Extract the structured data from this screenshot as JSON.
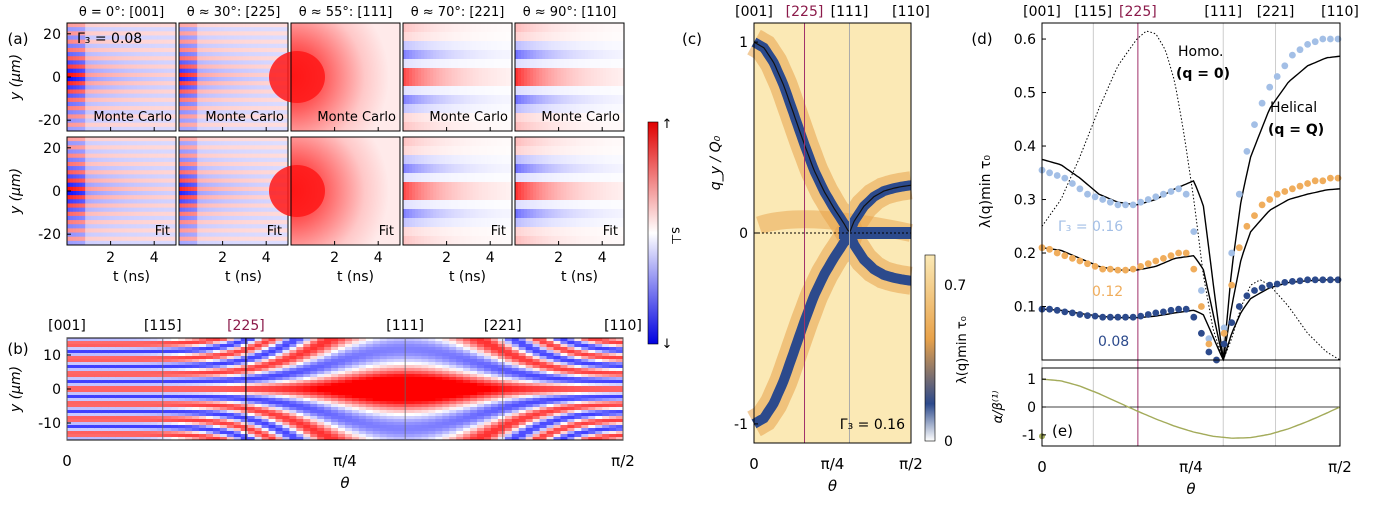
{
  "chart_data": [
    {
      "panel": "(a)",
      "type": "heatmap",
      "gamma_label": "Γ₃ = 0.08",
      "ylabel": "y (μm)",
      "xlabel": "t (ns)",
      "xticks": [
        2,
        4
      ],
      "yticks": [
        20,
        0,
        -20
      ],
      "ylim": [
        -25,
        25
      ],
      "row_labels": [
        "Monte Carlo",
        "Fit"
      ],
      "columns": [
        {
          "title": "θ = 0°: [001]",
          "mode": "stripe",
          "strength": 1.0
        },
        {
          "title": "θ ≈ 30°: [225]",
          "mode": "stripe",
          "strength": 0.9
        },
        {
          "title": "θ ≈ 55°: [111]",
          "mode": "homo",
          "strength": 1.0
        },
        {
          "title": "θ ≈ 70°: [221]",
          "mode": "wide",
          "strength": 0.8
        },
        {
          "title": "θ ≈ 90°: [110]",
          "mode": "wide",
          "strength": 0.9
        }
      ]
    },
    {
      "panel": "(b)",
      "type": "heatmap",
      "ylabel": "y (μm)",
      "xlabel": "θ",
      "xticks": [
        "0",
        "π/4",
        "π/2"
      ],
      "yticks": [
        10,
        0,
        -10
      ],
      "ylim": [
        -15,
        15
      ],
      "top_labels": [
        {
          "text": "[001]",
          "theta": 0.0
        },
        {
          "text": "[115]",
          "theta": 0.2706
        },
        {
          "text": "[225]",
          "theta": 0.5054,
          "highlight": true
        },
        {
          "text": "[111]",
          "theta": 0.9553
        },
        {
          "text": "[221]",
          "theta": 1.231
        },
        {
          "text": "[110]",
          "theta": 1.5708
        }
      ]
    },
    {
      "panel": "(c)",
      "type": "heatmap",
      "xlabel": "θ",
      "ylabel": "q_y / Q₀",
      "xticks": [
        "0",
        "π/4",
        "π/2"
      ],
      "yticks": [
        1,
        0,
        -1
      ],
      "ylim": [
        -1.1,
        1.1
      ],
      "gamma_label": "Γ₃ = 0.16",
      "top_labels": [
        {
          "text": "[001]",
          "theta": 0.0
        },
        {
          "text": "[225]",
          "theta": 0.5054,
          "highlight": true
        },
        {
          "text": "[111]",
          "theta": 0.9553
        },
        {
          "text": "[110]",
          "theta": 1.5708
        }
      ],
      "colorbar": {
        "label": "λ(q)min τ₀",
        "ticks": [
          0.7,
          0
        ]
      },
      "helical_curve": {
        "theta": [
          0,
          0.1,
          0.2,
          0.3,
          0.4,
          0.5,
          0.6,
          0.7,
          0.8,
          0.9,
          0.955,
          1.0,
          1.1,
          1.2,
          1.3,
          1.4,
          1.5,
          1.5708
        ],
        "qy": [
          1.0,
          0.97,
          0.89,
          0.77,
          0.62,
          0.47,
          0.33,
          0.22,
          0.13,
          0.05,
          0.0,
          0.06,
          0.14,
          0.19,
          0.22,
          0.235,
          0.245,
          0.25
        ]
      }
    },
    {
      "panel": "(d)",
      "type": "scatter",
      "xlabel": "θ",
      "ylabel": "λ(q)min τ₀",
      "xticks": [
        "0",
        "π/4",
        "π/2"
      ],
      "yticks": [
        0.1,
        0.2,
        0.3,
        0.4,
        0.5,
        0.6
      ],
      "ylim": [
        0,
        0.63
      ],
      "top_labels": [
        {
          "text": "[001]",
          "theta": 0.0
        },
        {
          "text": "[115]",
          "theta": 0.2706
        },
        {
          "text": "[225]",
          "theta": 0.5054,
          "highlight": true
        },
        {
          "text": "[111]",
          "theta": 0.9553
        },
        {
          "text": "[221]",
          "theta": 1.231
        },
        {
          "text": "[110]",
          "theta": 1.5708
        }
      ],
      "annotations": {
        "homo_line1": "Homo.",
        "homo_line2": "(q = 0)",
        "hel_line1": "Helical",
        "hel_line2": "(q = Q)"
      },
      "series": [
        {
          "name": "Γ₃ = 0.16",
          "color": "#a3bfe6",
          "theta": [
            0,
            0.04,
            0.08,
            0.12,
            0.16,
            0.2,
            0.24,
            0.28,
            0.32,
            0.36,
            0.4,
            0.44,
            0.48,
            0.52,
            0.56,
            0.6,
            0.64,
            0.68,
            0.72,
            0.76,
            0.8,
            0.84,
            0.88,
            0.92,
            0.96,
            1.0,
            1.04,
            1.08,
            1.12,
            1.16,
            1.2,
            1.24,
            1.28,
            1.32,
            1.36,
            1.4,
            1.44,
            1.48,
            1.52,
            1.56
          ],
          "values": [
            0.355,
            0.35,
            0.345,
            0.34,
            0.33,
            0.32,
            0.31,
            0.305,
            0.3,
            0.295,
            0.29,
            0.29,
            0.29,
            0.295,
            0.3,
            0.305,
            0.31,
            0.315,
            0.32,
            0.31,
            0.24,
            0.13,
            0.04,
            0.0,
            0.06,
            0.2,
            0.31,
            0.39,
            0.44,
            0.48,
            0.51,
            0.53,
            0.55,
            0.57,
            0.58,
            0.59,
            0.595,
            0.6,
            0.6,
            0.6
          ]
        },
        {
          "name": "0.12",
          "color": "#f0ad5c",
          "theta": [
            0,
            0.04,
            0.08,
            0.12,
            0.16,
            0.2,
            0.24,
            0.28,
            0.32,
            0.36,
            0.4,
            0.44,
            0.48,
            0.52,
            0.56,
            0.6,
            0.64,
            0.68,
            0.72,
            0.76,
            0.8,
            0.84,
            0.88,
            0.92,
            0.96,
            1.0,
            1.04,
            1.08,
            1.12,
            1.16,
            1.2,
            1.24,
            1.28,
            1.32,
            1.36,
            1.4,
            1.44,
            1.48,
            1.52,
            1.56
          ],
          "values": [
            0.21,
            0.207,
            0.2,
            0.195,
            0.19,
            0.185,
            0.18,
            0.175,
            0.17,
            0.17,
            0.168,
            0.168,
            0.17,
            0.175,
            0.18,
            0.185,
            0.19,
            0.195,
            0.2,
            0.2,
            0.17,
            0.1,
            0.03,
            0.0,
            0.05,
            0.14,
            0.21,
            0.25,
            0.27,
            0.29,
            0.3,
            0.31,
            0.315,
            0.32,
            0.325,
            0.33,
            0.335,
            0.335,
            0.34,
            0.34
          ]
        },
        {
          "name": "0.08",
          "color": "#2c4a8c",
          "theta": [
            0,
            0.04,
            0.08,
            0.12,
            0.16,
            0.2,
            0.24,
            0.28,
            0.32,
            0.36,
            0.4,
            0.44,
            0.48,
            0.52,
            0.56,
            0.6,
            0.64,
            0.68,
            0.72,
            0.76,
            0.8,
            0.84,
            0.88,
            0.92,
            0.96,
            1.0,
            1.04,
            1.08,
            1.12,
            1.16,
            1.2,
            1.24,
            1.28,
            1.32,
            1.36,
            1.4,
            1.44,
            1.48,
            1.52,
            1.56
          ],
          "values": [
            0.095,
            0.095,
            0.093,
            0.09,
            0.088,
            0.085,
            0.083,
            0.082,
            0.08,
            0.08,
            0.08,
            0.08,
            0.08,
            0.082,
            0.085,
            0.088,
            0.09,
            0.093,
            0.095,
            0.095,
            0.08,
            0.05,
            0.015,
            0.0,
            0.03,
            0.07,
            0.1,
            0.12,
            0.13,
            0.135,
            0.14,
            0.142,
            0.145,
            0.147,
            0.148,
            0.15,
            0.15,
            0.15,
            0.15,
            0.15
          ]
        }
      ],
      "fit_curves": [
        {
          "theta": [
            0,
            0.1,
            0.2,
            0.3,
            0.4,
            0.5,
            0.6,
            0.7,
            0.8,
            0.85,
            0.9,
            0.955,
            1.0,
            1.05,
            1.1,
            1.2,
            1.3,
            1.4,
            1.5,
            1.5708
          ],
          "values": [
            0.375,
            0.365,
            0.34,
            0.31,
            0.295,
            0.29,
            0.3,
            0.32,
            0.335,
            0.29,
            0.15,
            0.0,
            0.17,
            0.3,
            0.38,
            0.47,
            0.52,
            0.55,
            0.565,
            0.568
          ]
        },
        {
          "theta": [
            0,
            0.1,
            0.2,
            0.3,
            0.4,
            0.5,
            0.6,
            0.7,
            0.8,
            0.85,
            0.9,
            0.955,
            1.0,
            1.05,
            1.1,
            1.2,
            1.3,
            1.4,
            1.5,
            1.5708
          ],
          "values": [
            0.21,
            0.205,
            0.19,
            0.175,
            0.168,
            0.168,
            0.175,
            0.19,
            0.195,
            0.17,
            0.09,
            0.0,
            0.1,
            0.19,
            0.24,
            0.28,
            0.3,
            0.31,
            0.318,
            0.32
          ]
        },
        {
          "theta": [
            0,
            0.1,
            0.2,
            0.3,
            0.4,
            0.5,
            0.6,
            0.7,
            0.8,
            0.85,
            0.9,
            0.955,
            1.0,
            1.05,
            1.1,
            1.2,
            1.3,
            1.4,
            1.5,
            1.5708
          ],
          "values": [
            0.095,
            0.093,
            0.087,
            0.082,
            0.079,
            0.079,
            0.082,
            0.088,
            0.093,
            0.085,
            0.045,
            0.0,
            0.05,
            0.09,
            0.115,
            0.135,
            0.145,
            0.148,
            0.15,
            0.15
          ]
        }
      ],
      "homo_curve": {
        "theta": [
          0,
          0.1,
          0.2,
          0.3,
          0.4,
          0.5,
          0.55,
          0.6,
          0.65,
          0.7,
          0.75,
          0.8,
          0.85,
          0.9,
          0.955,
          1.0,
          1.05,
          1.1,
          1.15,
          1.2,
          1.3,
          1.4,
          1.5,
          1.5708
        ],
        "values": [
          0.25,
          0.3,
          0.38,
          0.47,
          0.55,
          0.6,
          0.615,
          0.61,
          0.58,
          0.52,
          0.42,
          0.3,
          0.16,
          0.06,
          0.0,
          0.04,
          0.1,
          0.14,
          0.15,
          0.14,
          0.1,
          0.05,
          0.015,
          0.0
        ]
      }
    },
    {
      "panel": "(e)",
      "type": "line",
      "xlabel": "θ",
      "ylabel": "α/β⁽¹⁾",
      "yticks": [
        1,
        0,
        -1
      ],
      "ylim": [
        -1.4,
        1.4
      ],
      "theta": [
        0,
        0.1,
        0.2,
        0.3,
        0.4,
        0.5,
        0.6,
        0.7,
        0.8,
        0.9,
        1.0,
        1.1,
        1.2,
        1.3,
        1.4,
        1.5,
        1.5708
      ],
      "values": [
        1.0,
        0.94,
        0.75,
        0.48,
        0.17,
        -0.14,
        -0.43,
        -0.69,
        -0.9,
        -1.05,
        -1.12,
        -1.1,
        -0.98,
        -0.78,
        -0.52,
        -0.22,
        0.0
      ]
    }
  ],
  "colorbar_a": {
    "label": "s⊥",
    "top": "↑",
    "bottom": "↓"
  }
}
